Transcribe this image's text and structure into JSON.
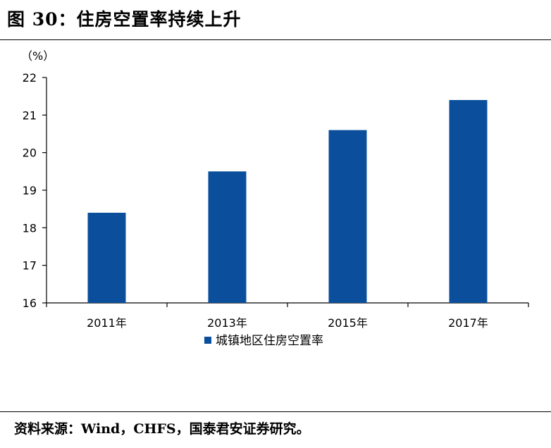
{
  "figure_title": "图 30：住房空置率持续上升",
  "source_note": "资料来源：Wind，CHFS，国泰君安证券研究。",
  "chart_data": {
    "type": "bar",
    "title": "",
    "ylabel": "（%）",
    "xlabel": "",
    "categories": [
      "2011年",
      "2013年",
      "2015年",
      "2017年"
    ],
    "series": [
      {
        "name": "城镇地区住房空置率",
        "values": [
          18.4,
          19.5,
          20.6,
          21.4
        ],
        "color": "#0b4f9c"
      }
    ],
    "ylim": [
      16,
      22
    ],
    "yticks": [
      16,
      17,
      18,
      19,
      20,
      21,
      22
    ],
    "grid": false,
    "legend_position": "bottom-center"
  }
}
